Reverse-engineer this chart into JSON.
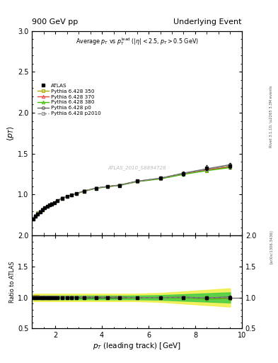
{
  "title_left": "900 GeV pp",
  "title_right": "Underlying Event",
  "subtitle": "Average $p_{T}$ vs $p_{T}^{\\mathrm{lead}}$ ($|\\eta| < 2.5, p_{T} > 0.5$ GeV)",
  "xlabel": "$p_{T}$ (leading track) [GeV]",
  "ylabel_main": "$\\langle p_{T} \\rangle$",
  "ylabel_ratio": "Ratio to ATLAS",
  "right_label_top": "Rivet 3.1.10, \\u2265 3.3M events",
  "right_label_bot": "[arXiv:1306.3436]",
  "watermark": "ATLAS_2010_S8894728",
  "xlim": [
    1.0,
    10.0
  ],
  "ylim_main": [
    0.5,
    3.0
  ],
  "ylim_ratio": [
    0.5,
    2.0
  ],
  "yticks_main": [
    1.0,
    1.5,
    2.0,
    2.5,
    3.0
  ],
  "yticks_ratio": [
    0.5,
    1.0,
    1.5,
    2.0
  ],
  "xticks": [
    2,
    4,
    6,
    8,
    10
  ],
  "atlas_x": [
    1.05,
    1.15,
    1.25,
    1.35,
    1.45,
    1.55,
    1.65,
    1.75,
    1.85,
    1.95,
    2.1,
    2.3,
    2.5,
    2.7,
    2.9,
    3.25,
    3.75,
    4.25,
    4.75,
    5.5,
    6.5,
    7.5,
    8.5,
    9.5
  ],
  "atlas_y": [
    0.7,
    0.735,
    0.765,
    0.79,
    0.815,
    0.835,
    0.855,
    0.87,
    0.885,
    0.9,
    0.925,
    0.955,
    0.975,
    0.995,
    1.01,
    1.04,
    1.075,
    1.095,
    1.11,
    1.165,
    1.2,
    1.255,
    1.325,
    1.35
  ],
  "atlas_yerr": [
    0.008,
    0.008,
    0.008,
    0.008,
    0.008,
    0.008,
    0.008,
    0.008,
    0.008,
    0.008,
    0.008,
    0.008,
    0.008,
    0.008,
    0.009,
    0.009,
    0.01,
    0.011,
    0.012,
    0.015,
    0.018,
    0.022,
    0.03,
    0.035
  ],
  "py350_y": [
    0.712,
    0.747,
    0.775,
    0.8,
    0.822,
    0.842,
    0.86,
    0.875,
    0.89,
    0.904,
    0.929,
    0.958,
    0.979,
    0.998,
    1.013,
    1.044,
    1.079,
    1.099,
    1.115,
    1.162,
    1.198,
    1.258,
    1.3,
    1.345
  ],
  "py370_y": [
    0.705,
    0.741,
    0.77,
    0.795,
    0.818,
    0.838,
    0.856,
    0.872,
    0.887,
    0.901,
    0.927,
    0.956,
    0.977,
    0.996,
    1.012,
    1.043,
    1.078,
    1.098,
    1.113,
    1.16,
    1.195,
    1.252,
    1.305,
    1.335
  ],
  "py380_y": [
    0.703,
    0.738,
    0.767,
    0.792,
    0.815,
    0.836,
    0.854,
    0.87,
    0.885,
    0.899,
    0.925,
    0.954,
    0.975,
    0.994,
    1.01,
    1.041,
    1.076,
    1.096,
    1.111,
    1.157,
    1.191,
    1.247,
    1.292,
    1.33
  ],
  "pyp0_y": [
    0.709,
    0.744,
    0.772,
    0.797,
    0.82,
    0.84,
    0.858,
    0.874,
    0.889,
    0.903,
    0.929,
    0.958,
    0.979,
    0.998,
    1.014,
    1.045,
    1.08,
    1.1,
    1.116,
    1.163,
    1.2,
    1.262,
    1.315,
    1.365
  ],
  "pyp2010_y": [
    0.707,
    0.742,
    0.771,
    0.796,
    0.818,
    0.839,
    0.857,
    0.873,
    0.888,
    0.902,
    0.928,
    0.957,
    0.978,
    0.997,
    1.013,
    1.044,
    1.079,
    1.099,
    1.114,
    1.161,
    1.197,
    1.257,
    1.308,
    1.352
  ],
  "color_atlas": "#000000",
  "color_350": "#aaaa00",
  "color_370": "#ee4444",
  "color_380": "#44bb00",
  "color_p0": "#666666",
  "color_p2010": "#888888",
  "band_yellow": "#eeee44",
  "band_green": "#44cc44"
}
